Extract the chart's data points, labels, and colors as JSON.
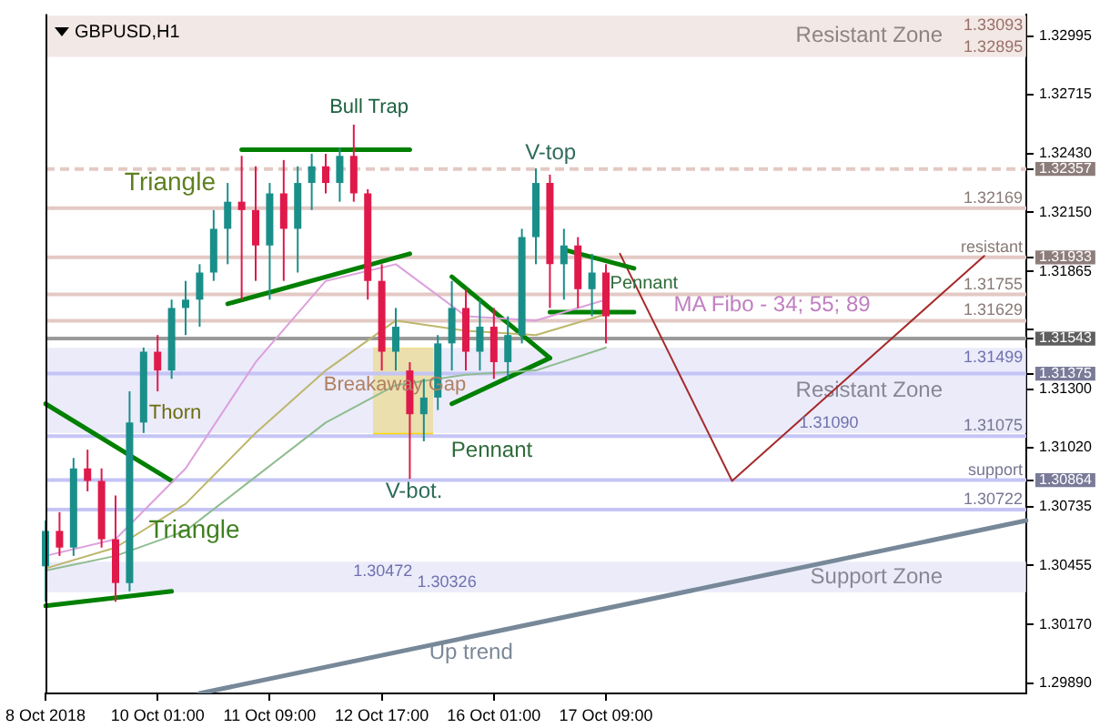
{
  "chart_data": {
    "type": "candlestick",
    "title": "GBPUSD,H1",
    "legend": false,
    "marker": "none",
    "categories": [
      "8 Oct 2018",
      null,
      null,
      null,
      null,
      null,
      null,
      null,
      "10 Oct 01:00",
      null,
      null,
      null,
      null,
      null,
      null,
      null,
      "11 Oct 09:00",
      null,
      null,
      null,
      null,
      null,
      null,
      null,
      "12 Oct 17:00",
      null,
      null,
      null,
      null,
      null,
      null,
      null,
      "16 Oct 01:00",
      null,
      null,
      null,
      null,
      null,
      null,
      null,
      "17 Oct 09:00",
      null,
      null,
      null,
      null,
      null,
      null,
      null,
      null,
      null,
      null,
      null,
      null,
      null,
      null,
      null,
      null,
      null,
      null,
      null,
      null,
      null,
      null,
      null,
      null,
      null,
      null,
      null,
      null,
      null,
      null
    ],
    "ohlc": [
      [
        1.3045,
        1.3067,
        1.3028,
        1.3062
      ],
      [
        1.3062,
        1.3071,
        1.305,
        1.3054
      ],
      [
        1.3054,
        1.3097,
        1.305,
        1.3092
      ],
      [
        1.3092,
        1.3101,
        1.3081,
        1.3086
      ],
      [
        1.3086,
        1.3092,
        1.3054,
        1.3058
      ],
      [
        1.3058,
        1.3079,
        1.3028,
        1.3037
      ],
      [
        1.3037,
        1.3129,
        1.3033,
        1.3114
      ],
      [
        1.3114,
        1.315,
        1.3109,
        1.3148
      ],
      [
        1.3148,
        1.3156,
        1.3129,
        1.3139
      ],
      [
        1.3139,
        1.3173,
        1.3135,
        1.3169
      ],
      [
        1.3169,
        1.3182,
        1.3156,
        1.3173
      ],
      [
        1.3173,
        1.319,
        1.316,
        1.3186
      ],
      [
        1.3186,
        1.3216,
        1.3182,
        1.3207
      ],
      [
        1.3207,
        1.3229,
        1.319,
        1.322
      ],
      [
        1.322,
        1.3242,
        1.3173,
        1.3216
      ],
      [
        1.3216,
        1.3237,
        1.3182,
        1.3199
      ],
      [
        1.3199,
        1.3229,
        1.3173,
        1.3224
      ],
      [
        1.3224,
        1.324,
        1.3182,
        1.3207
      ],
      [
        1.3207,
        1.3237,
        1.3186,
        1.3229
      ],
      [
        1.3229,
        1.3243,
        1.3216,
        1.3237
      ],
      [
        1.3237,
        1.3243,
        1.3224,
        1.3229
      ],
      [
        1.3229,
        1.3246,
        1.322,
        1.3242
      ],
      [
        1.3242,
        1.3257,
        1.322,
        1.3224
      ],
      [
        1.3224,
        1.3226,
        1.3173,
        1.3182
      ],
      [
        1.3182,
        1.319,
        1.3139,
        1.3148
      ],
      [
        1.3148,
        1.3169,
        1.3139,
        1.316
      ],
      [
        1.3139,
        1.3143,
        1.3087,
        1.3118
      ],
      [
        1.3118,
        1.3135,
        1.3105,
        1.3126
      ],
      [
        1.3126,
        1.3156,
        1.312,
        1.3152
      ],
      [
        1.3152,
        1.3182,
        1.3139,
        1.3169
      ],
      [
        1.3169,
        1.3178,
        1.3139,
        1.3148
      ],
      [
        1.3148,
        1.3173,
        1.3139,
        1.316
      ],
      [
        1.316,
        1.3169,
        1.3135,
        1.3143
      ],
      [
        1.3143,
        1.3165,
        1.3135,
        1.3156
      ],
      [
        1.3156,
        1.3207,
        1.3152,
        1.3203
      ],
      [
        1.3203,
        1.3236,
        1.319,
        1.3229
      ],
      [
        1.3229,
        1.3233,
        1.3169,
        1.319
      ],
      [
        1.319,
        1.3207,
        1.3173,
        1.3199
      ],
      [
        1.3199,
        1.3203,
        1.3169,
        1.3178
      ],
      [
        1.3178,
        1.3195,
        1.3165,
        1.3186
      ],
      [
        1.3186,
        1.319,
        1.3152,
        1.3165
      ],
      null,
      null,
      null,
      null,
      null,
      null,
      null,
      null,
      null,
      null,
      null,
      null,
      null,
      null,
      null,
      null,
      null,
      null,
      null,
      null,
      null,
      null,
      null,
      null,
      null,
      null,
      null,
      null,
      null,
      null
    ],
    "colors": [
      "#1a8f8a",
      "#e0194b",
      "#1a8f8a",
      "#e0194b",
      "#e0194b",
      "#e0194b",
      "#1a8f8a",
      "#1a8f8a",
      "#e0194b",
      "#1a8f8a",
      "#1a8f8a",
      "#1a8f8a",
      "#1a8f8a",
      "#1a8f8a",
      "#e0194b",
      "#e0194b",
      "#1a8f8a",
      "#e0194b",
      "#1a8f8a",
      "#1a8f8a",
      "#e0194b",
      "#1a8f8a",
      "#e0194b",
      "#e0194b",
      "#e0194b",
      "#1a8f8a",
      "#e0194b",
      "#1a8f8a",
      "#1a8f8a",
      "#1a8f8a",
      "#e0194b",
      "#1a8f8a",
      "#e0194b",
      "#1a8f8a",
      "#1a8f8a",
      "#1a8f8a",
      "#e0194b",
      "#1a8f8a",
      "#e0194b",
      "#1a8f8a",
      "#e0194b",
      null,
      null,
      null,
      null,
      null,
      null,
      null,
      null,
      null,
      null,
      null,
      null,
      null,
      null,
      null,
      null,
      null,
      null,
      null,
      null,
      null,
      null,
      null,
      null,
      null,
      null,
      null,
      null,
      null,
      null
    ],
    "series": [
      {
        "type": "line",
        "color": "#dda0dd",
        "values": [
          1.305,
          null,
          null,
          null,
          null,
          1.3058,
          null,
          null,
          null,
          null,
          1.3092,
          null,
          null,
          null,
          null,
          1.3143,
          null,
          null,
          null,
          null,
          1.3182,
          null,
          null,
          null,
          null,
          1.319,
          null,
          null,
          null,
          null,
          1.3165,
          null,
          null,
          null,
          null,
          1.3163,
          null,
          null,
          null,
          null,
          1.3173,
          null,
          null,
          null,
          null,
          null,
          null,
          null,
          null,
          null,
          null,
          null,
          null,
          null,
          null,
          null,
          null,
          null,
          null,
          null,
          null,
          null,
          null,
          null,
          null,
          null,
          null,
          null,
          null,
          null,
          null
        ]
      },
      {
        "type": "line",
        "color": "#bdb76b",
        "values": [
          1.3044,
          null,
          null,
          null,
          null,
          1.3054,
          null,
          null,
          null,
          null,
          1.3075,
          null,
          null,
          null,
          null,
          1.3109,
          null,
          null,
          null,
          null,
          1.3139,
          null,
          null,
          null,
          null,
          1.3163,
          null,
          null,
          null,
          null,
          1.3158,
          null,
          null,
          null,
          null,
          1.3156,
          null,
          null,
          null,
          null,
          1.3166,
          null,
          null,
          null,
          null,
          null,
          null,
          null,
          null,
          null,
          null,
          null,
          null,
          null,
          null,
          null,
          null,
          null,
          null,
          null,
          null,
          null,
          null,
          null,
          null,
          null,
          null,
          null,
          null,
          null,
          null
        ]
      },
      {
        "type": "line",
        "color": "#8fbc8f",
        "values": [
          1.3043,
          null,
          null,
          null,
          null,
          1.305,
          null,
          null,
          null,
          null,
          1.3062,
          null,
          null,
          null,
          null,
          1.3088,
          null,
          null,
          null,
          null,
          1.3114,
          null,
          null,
          null,
          null,
          1.3132,
          null,
          null,
          null,
          null,
          1.3137,
          null,
          null,
          null,
          null,
          1.3139,
          null,
          null,
          null,
          null,
          1.315,
          null,
          null,
          null,
          null,
          null,
          null,
          null,
          null,
          null,
          null,
          null,
          null,
          null,
          null,
          null,
          null,
          null,
          null,
          null,
          null,
          null,
          null,
          null,
          null,
          null,
          null,
          null,
          null,
          null,
          null
        ]
      },
      {
        "type": "line",
        "color": "#008000",
        "values": [
          1.3123,
          null,
          null,
          null,
          null,
          null,
          null,
          null,
          null,
          1.3086,
          null,
          null,
          null,
          null,
          null,
          null,
          null,
          null,
          null,
          null,
          null,
          null,
          null,
          null,
          null,
          null,
          null,
          null,
          null,
          null,
          null,
          null,
          null,
          null,
          null,
          null,
          null,
          null,
          null,
          null,
          null,
          null,
          null,
          null,
          null,
          null,
          null,
          null,
          null,
          null,
          null,
          null,
          null,
          null,
          null,
          null,
          null,
          null,
          null,
          null,
          null,
          null,
          null,
          null,
          null,
          null,
          null,
          null,
          null,
          null,
          null
        ]
      },
      {
        "type": "line",
        "color": "#008000",
        "values": [
          1.3026,
          null,
          null,
          null,
          null,
          null,
          null,
          null,
          null,
          1.3033,
          null,
          null,
          null,
          null,
          null,
          null,
          null,
          null,
          null,
          null,
          null,
          null,
          null,
          null,
          null,
          null,
          null,
          null,
          null,
          null,
          null,
          null,
          null,
          null,
          null,
          null,
          null,
          null,
          null,
          null,
          null,
          null,
          null,
          null,
          null,
          null,
          null,
          null,
          null,
          null,
          null,
          null,
          null,
          null,
          null,
          null,
          null,
          null,
          null,
          null,
          null,
          null,
          null,
          null,
          null,
          null,
          null,
          null,
          null,
          null,
          null
        ]
      },
      {
        "type": "line",
        "color": "#008000",
        "values": [
          null,
          null,
          null,
          null,
          null,
          null,
          null,
          null,
          null,
          null,
          null,
          null,
          null,
          null,
          1.3245,
          null,
          null,
          null,
          null,
          null,
          null,
          null,
          null,
          null,
          null,
          null,
          1.3245,
          null,
          null,
          null,
          null,
          null,
          null,
          null,
          null,
          null,
          null,
          null,
          null,
          null,
          null,
          null,
          null,
          null,
          null,
          null,
          null,
          null,
          null,
          null,
          null,
          null,
          null,
          null,
          null,
          null,
          null,
          null,
          null,
          null,
          null,
          null,
          null,
          null,
          null,
          null,
          null,
          null,
          null,
          null,
          null
        ]
      },
      {
        "type": "line",
        "color": "#008000",
        "values": [
          null,
          null,
          null,
          null,
          null,
          null,
          null,
          null,
          null,
          null,
          null,
          null,
          null,
          1.3171,
          null,
          null,
          null,
          null,
          null,
          null,
          null,
          null,
          null,
          null,
          null,
          null,
          1.3195,
          null,
          null,
          null,
          null,
          null,
          null,
          null,
          null,
          null,
          null,
          null,
          null,
          null,
          null,
          null,
          null,
          null,
          null,
          null,
          null,
          null,
          null,
          null,
          null,
          null,
          null,
          null,
          null,
          null,
          null,
          null,
          null,
          null,
          null,
          null,
          null,
          null,
          null,
          null,
          null,
          null,
          null,
          null,
          null
        ]
      },
      {
        "type": "line",
        "color": "#008000",
        "values": [
          null,
          null,
          null,
          null,
          null,
          null,
          null,
          null,
          null,
          null,
          null,
          null,
          null,
          null,
          null,
          null,
          null,
          null,
          null,
          null,
          null,
          null,
          null,
          null,
          null,
          null,
          null,
          null,
          null,
          1.3184,
          null,
          null,
          null,
          null,
          null,
          null,
          1.3145,
          null,
          null,
          null,
          null,
          null,
          null,
          null,
          null,
          null,
          null,
          null,
          null,
          null,
          null,
          null,
          null,
          null,
          null,
          null,
          null,
          null,
          null,
          null,
          null,
          null,
          null,
          null,
          null,
          null,
          null,
          null,
          null,
          null,
          null
        ]
      },
      {
        "type": "line",
        "color": "#008000",
        "values": [
          null,
          null,
          null,
          null,
          null,
          null,
          null,
          null,
          null,
          null,
          null,
          null,
          null,
          null,
          null,
          null,
          null,
          null,
          null,
          null,
          null,
          null,
          null,
          null,
          null,
          null,
          null,
          null,
          null,
          1.3123,
          null,
          null,
          null,
          null,
          null,
          null,
          1.3145,
          null,
          null,
          null,
          null,
          null,
          null,
          null,
          null,
          null,
          null,
          null,
          null,
          null,
          null,
          null,
          null,
          null,
          null,
          null,
          null,
          null,
          null,
          null,
          null,
          null,
          null,
          null,
          null,
          null,
          null,
          null,
          null,
          null,
          null
        ]
      },
      {
        "type": "line",
        "color": "#008000",
        "values": [
          null,
          null,
          null,
          null,
          null,
          null,
          null,
          null,
          null,
          null,
          null,
          null,
          null,
          null,
          null,
          null,
          null,
          null,
          null,
          null,
          null,
          null,
          null,
          null,
          null,
          null,
          null,
          null,
          null,
          null,
          null,
          null,
          null,
          null,
          null,
          null,
          null,
          1.3197,
          null,
          null,
          null,
          null,
          1.3188,
          null,
          null,
          null,
          null,
          null,
          null,
          null,
          null,
          null,
          null,
          null,
          null,
          null,
          null,
          null,
          null,
          null,
          null,
          null,
          null,
          null,
          null,
          null,
          null,
          null,
          null,
          null,
          null
        ]
      },
      {
        "type": "line",
        "color": "#008000",
        "values": [
          null,
          null,
          null,
          null,
          null,
          null,
          null,
          null,
          null,
          null,
          null,
          null,
          null,
          null,
          null,
          null,
          null,
          null,
          null,
          null,
          null,
          null,
          null,
          null,
          null,
          null,
          null,
          null,
          null,
          null,
          null,
          null,
          null,
          null,
          null,
          null,
          1.3167,
          null,
          null,
          null,
          null,
          null,
          1.3167,
          null,
          null,
          null,
          null,
          null,
          null,
          null,
          null,
          null,
          null,
          null,
          null,
          null,
          null,
          null,
          null,
          null,
          null,
          null,
          null,
          null,
          null,
          null,
          null,
          null,
          null,
          null,
          null
        ]
      },
      {
        "type": "line",
        "color": "#a52a2a",
        "values": [
          null,
          null,
          null,
          null,
          null,
          null,
          null,
          null,
          null,
          null,
          null,
          null,
          null,
          null,
          null,
          null,
          null,
          null,
          null,
          null,
          null,
          null,
          null,
          null,
          null,
          null,
          null,
          null,
          null,
          null,
          null,
          null,
          null,
          null,
          null,
          null,
          null,
          null,
          null,
          null,
          null,
          1.3195,
          null,
          null,
          null,
          null,
          null,
          null,
          null,
          1.3086,
          null,
          null,
          null,
          null,
          null,
          null,
          null,
          null,
          null,
          null,
          null,
          null,
          null,
          null,
          null,
          null,
          null,
          1.3194,
          null,
          null,
          null
        ]
      },
      {
        "type": "line",
        "color": "#778899",
        "values": [
          null,
          null,
          null,
          null,
          null,
          null,
          null,
          null,
          null,
          null,
          null,
          1.2984,
          null,
          null,
          null,
          null,
          null,
          null,
          null,
          null,
          null,
          null,
          null,
          null,
          null,
          null,
          null,
          null,
          null,
          null,
          null,
          null,
          null,
          null,
          null,
          null,
          null,
          null,
          null,
          null,
          null,
          null,
          null,
          null,
          null,
          null,
          null,
          null,
          null,
          null,
          null,
          null,
          null,
          null,
          null,
          null,
          null,
          null,
          null,
          null,
          null,
          null,
          null,
          null,
          null,
          null,
          null,
          null,
          null,
          null,
          1.3067
        ]
      }
    ],
    "ylim": [
      1.2984,
      1.331
    ],
    "yticks": [
      1.32995,
      1.32715,
      {
        "value": 1.3243,
        "label": "1.32430"
      },
      {
        "value": 1.3215,
        "label": "1.32150"
      },
      1.31865,
      {
        "value": 1.31585,
        "label": null
      },
      {
        "value": 1.313,
        "label": "1.31300"
      },
      {
        "value": 1.3102,
        "label": "1.31020"
      },
      1.30735,
      1.30455,
      {
        "value": 1.3017,
        "label": "1.30170"
      },
      {
        "value": 1.2989,
        "label": "1.29890"
      },
      1.32357,
      1.31933,
      1.31543,
      1.31375,
      1.30864
    ],
    "bands": [
      {
        "axis": "y",
        "from": 1.32895,
        "to": 1.33093,
        "label": "Resistant Zone",
        "color": "#ecdedb"
      },
      {
        "axis": "y",
        "from": 1.3109,
        "to": 1.31499,
        "label": "Resistant Zone",
        "color": "#e2e2f8"
      },
      {
        "axis": "y",
        "from": 1.30326,
        "to": 1.30472,
        "label": "Support Zone",
        "color": "#e2e2f8"
      }
    ],
    "ref_lines": [
      {
        "axis": "y",
        "value": 1.32357,
        "color": "#e3c9c4",
        "line_style": "dashed"
      },
      {
        "axis": "y",
        "value": 1.32169,
        "label": "1.32169",
        "color": "#e3c9c4"
      },
      {
        "axis": "y",
        "value": 1.31933,
        "label": "resistant",
        "color": "#e3c9c4"
      },
      {
        "axis": "y",
        "value": 1.31755,
        "label": "1.31755",
        "color": "#e3c9c4"
      },
      {
        "axis": "y",
        "value": 1.31629,
        "label": "1.31629",
        "color": "#e3c9c4"
      },
      {
        "axis": "y",
        "value": 1.31543,
        "color": "#9a9a9a"
      },
      {
        "axis": "y",
        "value": 1.31375,
        "color": "#c4c4f6"
      },
      {
        "axis": "y",
        "value": 1.31075,
        "label": "1.31075",
        "color": "#c4c4f6"
      },
      {
        "axis": "y",
        "value": 1.30864,
        "label": "support",
        "color": "#c4c4f6"
      },
      {
        "axis": "y",
        "value": 1.30722,
        "label": "1.30722",
        "color": "#c4c4f6"
      }
    ],
    "annotations": [
      "Bull Trap",
      "Triangle",
      "Thorn",
      "Breakaway Gap",
      "V-top",
      "V-bot.",
      "Pennant",
      "Pennant",
      "MA Fibo - 34; 55; 89",
      "Triangle",
      "Up trend",
      {
        "text": "1.33093",
        "y": 1.33093
      },
      {
        "text": "1.32895",
        "y": 1.32895
      },
      {
        "text": "1.31499",
        "y": 1.31499
      },
      {
        "text": "1.31090",
        "y": 1.3109
      },
      {
        "text": "1.30472",
        "y": 1.30472
      },
      {
        "text": "1.30326",
        "y": 1.30326
      }
    ]
  }
}
